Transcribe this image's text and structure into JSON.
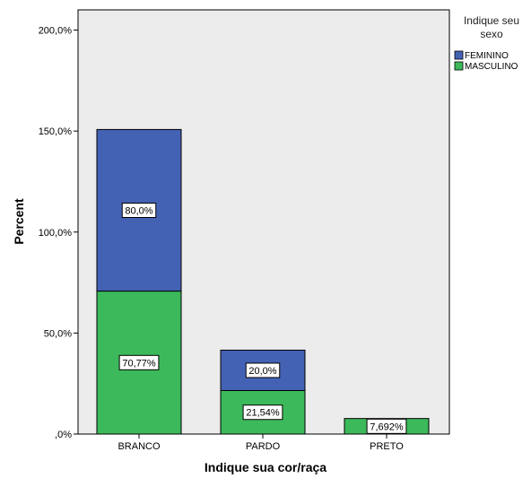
{
  "chart_data": {
    "type": "bar",
    "stacked": true,
    "xlabel": "Indique sua cor/raça",
    "ylabel": "Percent",
    "ylim": [
      0,
      210
    ],
    "yticks": [
      0,
      50,
      100,
      150,
      200
    ],
    "ytick_labels": [
      ",0%",
      "50,0%",
      "100,0%",
      "150,0%",
      "200,0%"
    ],
    "categories": [
      "BRANCO",
      "PARDO",
      "PRETO"
    ],
    "series": [
      {
        "name": "MASCULINO",
        "color": "#3cb95a",
        "values": [
          70.77,
          21.54,
          7.692
        ],
        "labels": [
          "70,77%",
          "21,54%",
          "7,692%"
        ]
      },
      {
        "name": "FEMININO",
        "color": "#4462b4",
        "values": [
          80.0,
          20.0,
          0
        ],
        "labels": [
          "80,0%",
          "20,0%",
          ""
        ]
      }
    ],
    "legend": {
      "title": "Indique seu sexo",
      "title_lines": [
        "Indique seu",
        "sexo"
      ],
      "placement": "top-right",
      "order": [
        "FEMININO",
        "MASCULINO"
      ]
    },
    "plot_background": "#ececec",
    "grid": false
  }
}
